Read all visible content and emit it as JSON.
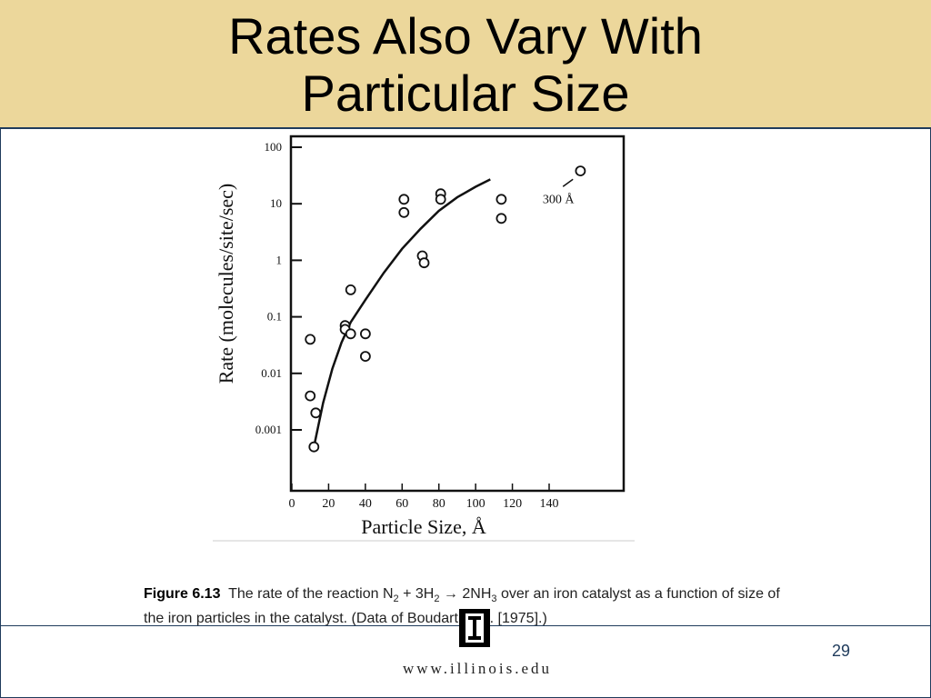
{
  "slide": {
    "title_line1": "Rates Also Vary With",
    "title_line2": "Particular Size",
    "page_number": "29",
    "url": "www.illinois.edu"
  },
  "caption": {
    "figure_label": "Figure 6.13",
    "text_a": "The rate of the reaction N",
    "sub_a": "2",
    "text_b": " + 3H",
    "sub_b": "2",
    "text_c": " → 2NH",
    "sub_c": "3",
    "text_d": " over an iron catalyst as a function of size of the iron particles in the catalyst.  (Data of Boudart et al. [1975].)"
  },
  "chart_data": {
    "type": "scatter",
    "title": "",
    "xlabel": "Particle Size, Å",
    "ylabel": "Rate (molecules/site/sec)",
    "xlim": [
      0,
      160
    ],
    "ylim": [
      5e-05,
      200
    ],
    "y_scale": "log",
    "x_ticks": [
      0,
      20,
      40,
      60,
      80,
      100,
      120,
      140
    ],
    "y_ticks": [
      0.001,
      0.01,
      0.1,
      1,
      10,
      100
    ],
    "y_tick_labels": [
      "0.001",
      "0.01",
      "0.1",
      "1",
      "10",
      "100"
    ],
    "grid": false,
    "series": [
      {
        "points": [
          [
            10,
            0.04
          ],
          [
            10,
            0.004
          ],
          [
            13,
            0.002
          ],
          [
            12,
            0.0005
          ],
          [
            29,
            0.07
          ],
          [
            29,
            0.06
          ],
          [
            32,
            0.05
          ],
          [
            32,
            0.3
          ],
          [
            40,
            0.05
          ],
          [
            40,
            0.02
          ],
          [
            61,
            12
          ],
          [
            61,
            7
          ],
          [
            71,
            1.2
          ],
          [
            72,
            0.9
          ],
          [
            81,
            15
          ],
          [
            81,
            12
          ],
          [
            114,
            12
          ],
          [
            114,
            5.5
          ],
          [
            157,
            38
          ]
        ]
      }
    ],
    "fit_curve": [
      [
        12,
        0.0005
      ],
      [
        17,
        0.003
      ],
      [
        22,
        0.012
      ],
      [
        27,
        0.035
      ],
      [
        32,
        0.08
      ],
      [
        40,
        0.2
      ],
      [
        50,
        0.6
      ],
      [
        60,
        1.6
      ],
      [
        70,
        3.6
      ],
      [
        80,
        7.5
      ],
      [
        90,
        13
      ],
      [
        100,
        20
      ],
      [
        108,
        27
      ]
    ],
    "annotations": [
      {
        "text": "300 Å",
        "x": 150,
        "y": 12
      }
    ]
  }
}
